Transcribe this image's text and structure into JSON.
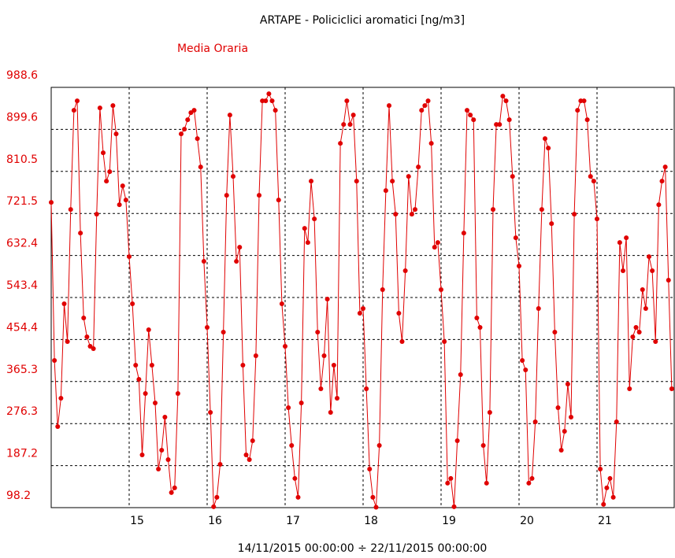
{
  "chart_data": {
    "type": "line",
    "title": "ARTAPE - Policiclici aromatici [ng/m3]",
    "x_label": "14/11/2015 00:00:00 ÷ 22/11/2015 00:00:00",
    "x": [
      0,
      1,
      2,
      3,
      4,
      5,
      6,
      7,
      8,
      9,
      10,
      11,
      12,
      13,
      14,
      15,
      16,
      17,
      18,
      19,
      20,
      21,
      22,
      23,
      24,
      25,
      26,
      27,
      28,
      29,
      30,
      31,
      32,
      33,
      34,
      35,
      36,
      37,
      38,
      39,
      40,
      41,
      42,
      43,
      44,
      45,
      46,
      47,
      48,
      49,
      50,
      51,
      52,
      53,
      54,
      55,
      56,
      57,
      58,
      59,
      60,
      61,
      62,
      63,
      64,
      65,
      66,
      67,
      68,
      69,
      70,
      71,
      72,
      73,
      74,
      75,
      76,
      77,
      78,
      79,
      80,
      81,
      82,
      83,
      84,
      85,
      86,
      87,
      88,
      89,
      90,
      91,
      92,
      93,
      94,
      95,
      96,
      97,
      98,
      99,
      100,
      101,
      102,
      103,
      104,
      105,
      106,
      107,
      108,
      109,
      110,
      111,
      112,
      113,
      114,
      115,
      116,
      117,
      118,
      119,
      120,
      121,
      122,
      123,
      124,
      125,
      126,
      127,
      128,
      129,
      130,
      131,
      132,
      133,
      134,
      135,
      136,
      137,
      138,
      139,
      140,
      141,
      142,
      143,
      144,
      145,
      146,
      147,
      148,
      149,
      150,
      151,
      152,
      153,
      154,
      155,
      156,
      157,
      158,
      159,
      160,
      161,
      162,
      163,
      164,
      165,
      166,
      167,
      168,
      169,
      170,
      171,
      172,
      173,
      174,
      175,
      176,
      177,
      178,
      179,
      180,
      181,
      182,
      183,
      184,
      185,
      186,
      187,
      188,
      189,
      190,
      191
    ],
    "series": [
      {
        "name": "Media Oraria",
        "color": "#e00000",
        "values": [
          745,
          410,
          270,
          330,
          530,
          450,
          730,
          940,
          960,
          680,
          500,
          460,
          440,
          435,
          720,
          945,
          850,
          790,
          810,
          950,
          890,
          740,
          780,
          750,
          630,
          530,
          400,
          370,
          210,
          340,
          475,
          400,
          320,
          180,
          220,
          290,
          200,
          130,
          140,
          340,
          890,
          900,
          920,
          935,
          940,
          880,
          820,
          620,
          480,
          300,
          100,
          120,
          190,
          470,
          760,
          930,
          800,
          620,
          650,
          400,
          210,
          200,
          240,
          420,
          760,
          960,
          960,
          975,
          960,
          940,
          750,
          530,
          440,
          310,
          230,
          160,
          120,
          320,
          690,
          660,
          790,
          710,
          470,
          350,
          420,
          540,
          300,
          400,
          330,
          870,
          910,
          960,
          910,
          930,
          790,
          510,
          520,
          350,
          180,
          120,
          99,
          230,
          560,
          770,
          950,
          790,
          720,
          510,
          450,
          600,
          800,
          720,
          730,
          820,
          940,
          950,
          960,
          870,
          650,
          660,
          560,
          450,
          150,
          160,
          100,
          240,
          380,
          680,
          940,
          930,
          920,
          500,
          480,
          230,
          150,
          300,
          730,
          910,
          910,
          970,
          960,
          920,
          800,
          670,
          610,
          410,
          390,
          150,
          160,
          280,
          520,
          730,
          880,
          860,
          700,
          470,
          310,
          220,
          260,
          360,
          290,
          720,
          940,
          960,
          960,
          920,
          800,
          790,
          710,
          180,
          105,
          140,
          160,
          120,
          280,
          660,
          600,
          670,
          350,
          460,
          480,
          470,
          560,
          520,
          630,
          600,
          450,
          740,
          790,
          820,
          580,
          350
        ]
      }
    ],
    "xlim": [
      0,
      192
    ],
    "xticks": [
      {
        "value": 24,
        "label": "15"
      },
      {
        "value": 48,
        "label": "16"
      },
      {
        "value": 72,
        "label": "17"
      },
      {
        "value": 96,
        "label": "18"
      },
      {
        "value": 120,
        "label": "19"
      },
      {
        "value": 144,
        "label": "20"
      },
      {
        "value": 168,
        "label": "21"
      }
    ],
    "ylim": [
      98.2,
      988.6
    ],
    "yticks": [
      98.2,
      187.2,
      276.3,
      365.3,
      454.4,
      543.4,
      632.4,
      721.5,
      810.5,
      899.6,
      988.6
    ],
    "grid": true
  }
}
